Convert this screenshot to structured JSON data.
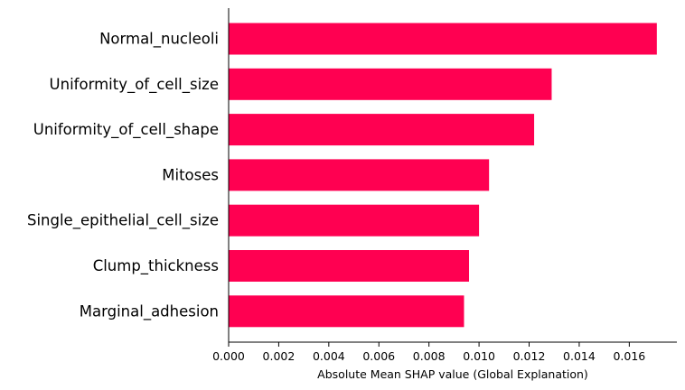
{
  "chart_data": {
    "type": "bar",
    "orientation": "horizontal",
    "categories": [
      "Normal_nucleoli",
      "Uniformity_of_cell_size",
      "Uniformity_of_cell_shape",
      "Mitoses",
      "Single_epithelial_cell_size",
      "Clump_thickness",
      "Marginal_adhesion"
    ],
    "values": [
      0.0171,
      0.0129,
      0.0122,
      0.0104,
      0.01,
      0.0096,
      0.0094
    ],
    "xlabel": "Absolute Mean SHAP value (Global Explanation)",
    "ylabel": "",
    "xlim": [
      0.0,
      0.0179
    ],
    "xticks": [
      "0.000",
      "0.002",
      "0.004",
      "0.006",
      "0.008",
      "0.010",
      "0.012",
      "0.014",
      "0.016"
    ],
    "grid": false,
    "bar_color": "#ff0051",
    "axis_color": "#000000"
  }
}
